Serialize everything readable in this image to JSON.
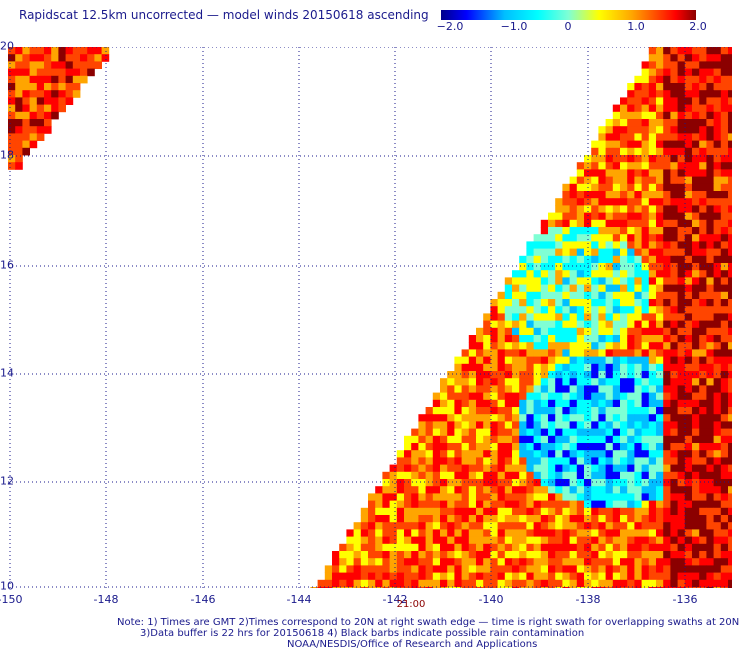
{
  "header": {
    "title": "Rapidscat 12.5km uncorrected — model winds 20150618 ascending"
  },
  "colorbar": {
    "labels": [
      "−2.0",
      "−1.0",
      "0",
      "1.0",
      "2.0"
    ],
    "stops": [
      "#00008b",
      "#0000ff",
      "#00bfff",
      "#00ffff",
      "#7fffd4",
      "#ffff00",
      "#ffa500",
      "#ff4500",
      "#ff0000",
      "#8b0000"
    ]
  },
  "chart_data": {
    "type": "heatmap",
    "title": "Rapidscat 12.5km uncorrected — model winds 20150618 ascending",
    "x_ticks": [
      "-150",
      "-148",
      "-146",
      "-144",
      "-142",
      "-140",
      "-138",
      "-136"
    ],
    "y_ticks": [
      "20",
      "18",
      "16",
      "14",
      "12",
      "10"
    ],
    "xlim": [
      -150,
      -135
    ],
    "ylim": [
      10,
      20
    ],
    "value_range": [
      -2.0,
      2.0
    ],
    "grid": true,
    "swath_time_label": "21:00"
  },
  "footer": {
    "note_line1": "Note: 1) Times are GMT 2)Times correspond to 20N at right swath edge — time is right swath for overlapping swaths at 20N",
    "note_line2": "3)Data buffer is 22 hrs for 20150618 4) Black barbs indicate possible rain contamination",
    "note_line3": "NOAA/NESDIS/Office of Research and Applications"
  }
}
